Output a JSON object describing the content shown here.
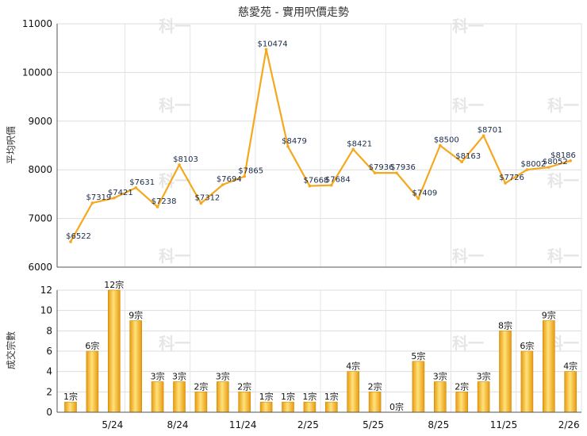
{
  "chart_data": [
    {
      "type": "line",
      "title": "慈愛苑 - 實用呎價走勢",
      "ylabel": "平均呎價",
      "ylim": [
        6000,
        11000
      ],
      "yticks": [
        6000,
        7000,
        8000,
        9000,
        10000,
        11000
      ],
      "x_tick_labels": [
        "5/24",
        "8/24",
        "11/24",
        "2/25",
        "5/25",
        "8/25",
        "11/25",
        "2/26"
      ],
      "values": [
        6522,
        7319,
        7421,
        7631,
        7238,
        8103,
        7312,
        7694,
        7865,
        10474,
        8479,
        7668,
        7684,
        8421,
        7936,
        7936,
        7409,
        8500,
        8163,
        8701,
        7726,
        8002,
        8052,
        8186
      ],
      "labels": [
        "$6522",
        "$7319",
        "$7421",
        "$7631",
        "$7238",
        "$8103",
        "$7312",
        "$7694",
        "$7865",
        "$10474",
        "$8479",
        "$7668",
        "$7684",
        "$8421",
        "$7936",
        "$7936",
        "$7409",
        "$8500",
        "$8163",
        "$8701",
        "$7726",
        "$8002",
        "$8052",
        "$8186"
      ],
      "color": "#f5a81c",
      "grid": true
    },
    {
      "type": "bar",
      "ylabel": "成交宗數",
      "ylim": [
        0,
        12
      ],
      "yticks": [
        0,
        2,
        4,
        6,
        8,
        10,
        12
      ],
      "x_tick_labels": [
        "5/24",
        "8/24",
        "11/24",
        "2/25",
        "5/25",
        "8/25",
        "11/25",
        "2/26"
      ],
      "values": [
        1,
        6,
        12,
        9,
        3,
        3,
        2,
        3,
        2,
        1,
        1,
        1,
        1,
        4,
        2,
        0,
        5,
        3,
        2,
        3,
        8,
        6,
        9,
        4
      ],
      "labels": [
        "1宗",
        "6宗",
        "12宗",
        "9宗",
        "3宗",
        "3宗",
        "2宗",
        "3宗",
        "2宗",
        "1宗",
        "1宗",
        "1宗",
        "1宗",
        "4宗",
        "2宗",
        "0宗",
        "5宗",
        "3宗",
        "2宗",
        "3宗",
        "8宗",
        "6宗",
        "9宗",
        "4宗"
      ],
      "color": "#f0b020",
      "grid": true
    }
  ],
  "watermark": "科一"
}
